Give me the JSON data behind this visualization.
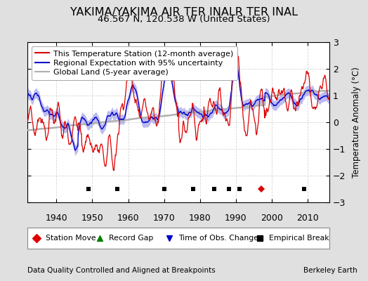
{
  "title": "YAKIMA/YAKIMA AIR TER INALR TER INAL",
  "subtitle": "46.567 N, 120.538 W (United States)",
  "ylabel": "Temperature Anomaly (°C)",
  "footer_left": "Data Quality Controlled and Aligned at Breakpoints",
  "footer_right": "Berkeley Earth",
  "ylim": [
    -3,
    3
  ],
  "xlim": [
    1932,
    2016
  ],
  "xticks": [
    1940,
    1950,
    1960,
    1970,
    1980,
    1990,
    2000,
    2010
  ],
  "yticks": [
    -3,
    -2,
    -1,
    0,
    1,
    2,
    3
  ],
  "bg_color": "#e0e0e0",
  "plot_bg_color": "#ffffff",
  "station_move_years": [
    1997
  ],
  "empirical_break_years": [
    1949,
    1957,
    1970,
    1978,
    1984,
    1988,
    1991,
    2009
  ],
  "red_line_color": "#dd0000",
  "blue_line_color": "#0000cc",
  "blue_fill_color": "#aaaaee",
  "gray_line_color": "#b0b0b0",
  "title_fontsize": 11.5,
  "subtitle_fontsize": 9.5,
  "tick_fontsize": 9,
  "label_fontsize": 8.5,
  "legend_fontsize": 8.0
}
